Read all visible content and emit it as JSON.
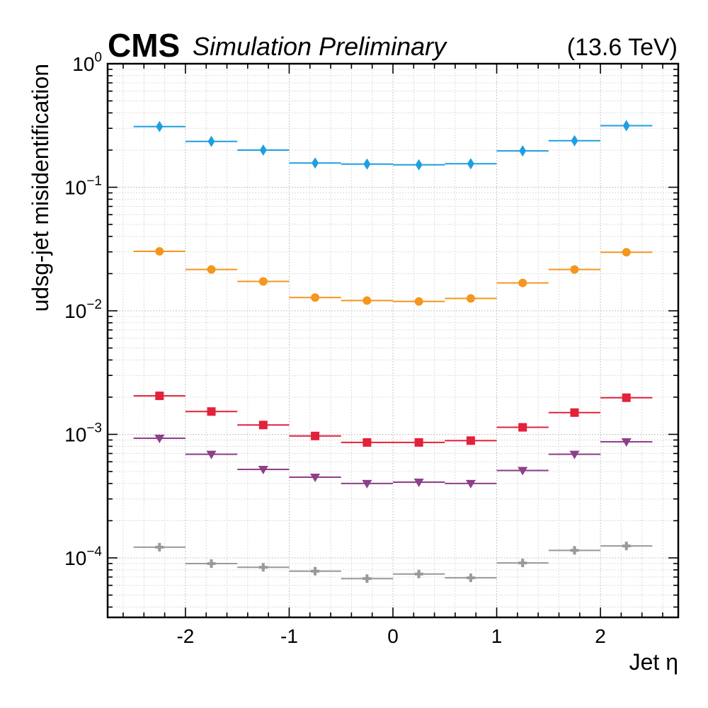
{
  "header": {
    "cms_label": "CMS",
    "cms_extra": "Simulation Preliminary",
    "energy_label": "(13.6 TeV)"
  },
  "chart_data": {
    "type": "scatter",
    "title": "",
    "xlabel": "Jet η",
    "ylabel": "udsg-jet misidentification",
    "xlim": [
      -2.75,
      2.75
    ],
    "ylim": [
      3.3e-05,
      1
    ],
    "y_scale": "log",
    "grid": true,
    "legend": "none",
    "x_ticks": [
      -2,
      -1,
      0,
      1,
      2
    ],
    "x_tick_labels": [
      "-2",
      "-1",
      "0",
      "1",
      "2"
    ],
    "y_ticks": [
      {
        "value": 0.0001,
        "base": "10",
        "exp": "−4"
      },
      {
        "value": 0.001,
        "base": "10",
        "exp": "−3"
      },
      {
        "value": 0.01,
        "base": "10",
        "exp": "−2"
      },
      {
        "value": 0.1,
        "base": "10",
        "exp": "−1"
      },
      {
        "value": 1,
        "base": "10",
        "exp": "0"
      }
    ],
    "x_bin_edges": [
      -2.5,
      -2.0,
      -1.5,
      -1.0,
      -0.5,
      0.0,
      0.5,
      1.0,
      1.5,
      2.0,
      2.5
    ],
    "x": [
      -2.25,
      -1.75,
      -1.25,
      -0.75,
      -0.25,
      0.25,
      0.75,
      1.25,
      1.75,
      2.25
    ],
    "series": [
      {
        "marker": "diamond",
        "color": "#1f9fe0",
        "values": [
          0.31,
          0.235,
          0.2,
          0.157,
          0.154,
          0.152,
          0.155,
          0.197,
          0.238,
          0.315
        ]
      },
      {
        "marker": "circle",
        "color": "#f5961f",
        "values": [
          0.0303,
          0.0216,
          0.0173,
          0.0128,
          0.0121,
          0.0119,
          0.0126,
          0.0168,
          0.0216,
          0.0298
        ]
      },
      {
        "marker": "square",
        "color": "#e2213a",
        "values": [
          0.00205,
          0.00153,
          0.00119,
          0.00097,
          0.00086,
          0.00086,
          0.00089,
          0.00114,
          0.0015,
          0.00198
        ]
      },
      {
        "marker": "triangle-down",
        "color": "#8e3f8a",
        "values": [
          0.00093,
          0.00069,
          0.00052,
          0.00045,
          0.0004,
          0.00041,
          0.0004,
          0.00051,
          0.00069,
          0.00087
        ]
      },
      {
        "marker": "plus",
        "color": "#999999",
        "values": [
          0.000122,
          9e-05,
          8.4e-05,
          7.8e-05,
          6.8e-05,
          7.4e-05,
          6.9e-05,
          9.1e-05,
          0.000115,
          0.000125
        ]
      }
    ]
  }
}
